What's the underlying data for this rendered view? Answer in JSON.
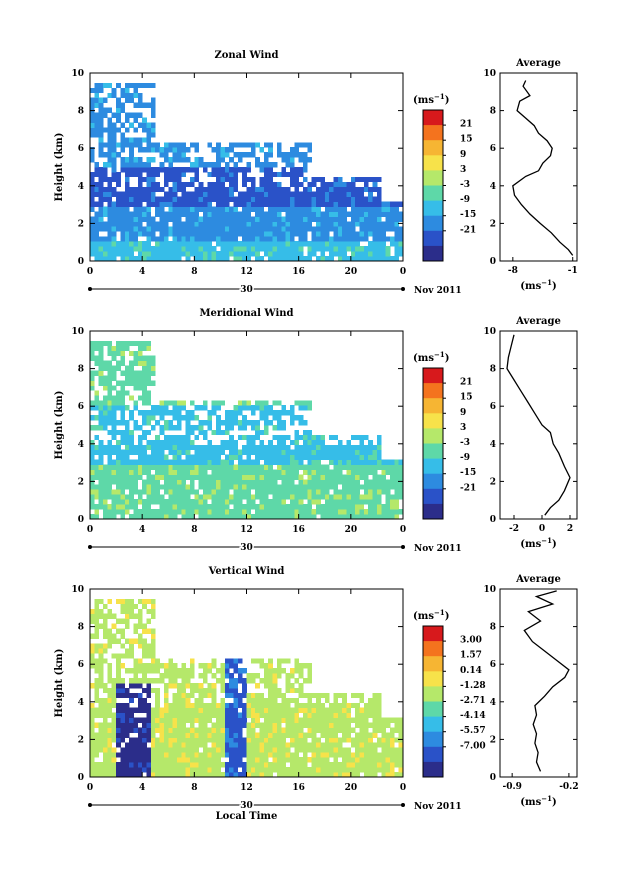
{
  "chart_data": [
    {
      "type": "heatmap",
      "title": "Zonal Wind",
      "ylabel": "Height (km)",
      "ylim": [
        0,
        10
      ],
      "xlim": [
        0,
        24
      ],
      "x_ticks": [
        "0",
        "4",
        "8",
        "12",
        "16",
        "20",
        "0"
      ],
      "y_ticks": [
        "0",
        "2",
        "4",
        "6",
        "8",
        "10"
      ],
      "date_tick": "30",
      "date_label": "Nov 2011",
      "colorbar": {
        "unit": "(ms",
        "unit_exp": "−1",
        "unit_close": ")",
        "labels": [
          "21",
          "15",
          "9",
          "3",
          "-3",
          "-9",
          "-15",
          "-21"
        ],
        "colors": [
          "#d7191c",
          "#f4731e",
          "#f6b533",
          "#f7e24a",
          "#b5e86a",
          "#5ed8a8",
          "#36bde8",
          "#2d8be0",
          "#2a52c8",
          "#2b2d8a"
        ]
      },
      "average": {
        "title": "Average",
        "x_ticks": [
          "-8",
          "-1"
        ],
        "xlabel": "(ms",
        "xlabel_exp": "−1",
        "xlabel_close": ")",
        "xlim": [
          -9.5,
          -0.5
        ],
        "profile": [
          [
            -1.0,
            0.3
          ],
          [
            -1.5,
            0.6
          ],
          [
            -2.5,
            1.0
          ],
          [
            -3.5,
            1.5
          ],
          [
            -4.8,
            2.0
          ],
          [
            -6.0,
            2.5
          ],
          [
            -7.0,
            3.0
          ],
          [
            -7.8,
            3.5
          ],
          [
            -8.0,
            4.0
          ],
          [
            -6.5,
            4.5
          ],
          [
            -5.0,
            4.8
          ],
          [
            -4.5,
            5.2
          ],
          [
            -3.6,
            5.6
          ],
          [
            -3.4,
            6.0
          ],
          [
            -4.0,
            6.4
          ],
          [
            -5.0,
            6.8
          ],
          [
            -5.5,
            7.2
          ],
          [
            -6.5,
            7.6
          ],
          [
            -7.5,
            8.0
          ],
          [
            -7.2,
            8.5
          ],
          [
            -6.0,
            8.8
          ],
          [
            -6.8,
            9.3
          ],
          [
            -6.5,
            9.6
          ]
        ]
      }
    },
    {
      "type": "heatmap",
      "title": "Meridional Wind",
      "ylabel": "Height (km)",
      "ylim": [
        0,
        10
      ],
      "xlim": [
        0,
        24
      ],
      "x_ticks": [
        "0",
        "4",
        "8",
        "12",
        "16",
        "20",
        "0"
      ],
      "y_ticks": [
        "0",
        "2",
        "4",
        "6",
        "8",
        "10"
      ],
      "date_tick": "30",
      "date_label": "Nov 2011",
      "colorbar": {
        "unit": "(ms",
        "unit_exp": "−1",
        "unit_close": ")",
        "labels": [
          "21",
          "15",
          "9",
          "3",
          "-3",
          "-9",
          "-15",
          "-21"
        ],
        "colors": [
          "#d7191c",
          "#f4731e",
          "#f6b533",
          "#f7e24a",
          "#b5e86a",
          "#5ed8a8",
          "#36bde8",
          "#2d8be0",
          "#2a52c8",
          "#2b2d8a"
        ]
      },
      "average": {
        "title": "Average",
        "x_ticks": [
          "-2",
          "0",
          "2"
        ],
        "xlabel": "(ms",
        "xlabel_exp": "−1",
        "xlabel_close": ")",
        "xlim": [
          -3,
          2.5
        ],
        "profile": [
          [
            0.2,
            0.2
          ],
          [
            0.6,
            0.6
          ],
          [
            1.2,
            1.0
          ],
          [
            1.6,
            1.5
          ],
          [
            2.0,
            2.2
          ],
          [
            1.6,
            2.8
          ],
          [
            1.2,
            3.5
          ],
          [
            0.8,
            4.0
          ],
          [
            0.6,
            4.6
          ],
          [
            0.0,
            5.0
          ],
          [
            -0.5,
            5.6
          ],
          [
            -1.0,
            6.2
          ],
          [
            -1.5,
            6.8
          ],
          [
            -2.0,
            7.4
          ],
          [
            -2.5,
            8.0
          ],
          [
            -2.4,
            8.6
          ],
          [
            -2.2,
            9.2
          ],
          [
            -2.0,
            9.8
          ]
        ]
      }
    },
    {
      "type": "heatmap",
      "title": "Vertical Wind",
      "ylabel": "Height (km)",
      "xlabel": "Local Time",
      "ylim": [
        0,
        10
      ],
      "xlim": [
        0,
        24
      ],
      "x_ticks": [
        "0",
        "4",
        "8",
        "12",
        "16",
        "20",
        "0"
      ],
      "y_ticks": [
        "0",
        "2",
        "4",
        "6",
        "8",
        "10"
      ],
      "date_tick": "30",
      "date_label": "Nov 2011",
      "colorbar": {
        "unit": "(ms",
        "unit_exp": "−1",
        "unit_close": ")",
        "labels": [
          "3.00",
          "1.57",
          "0.14",
          "-1.28",
          "-2.71",
          "-4.14",
          "-5.57",
          "-7.00"
        ],
        "colors": [
          "#d7191c",
          "#f4731e",
          "#f6b533",
          "#f7e24a",
          "#b5e86a",
          "#5ed8a8",
          "#36bde8",
          "#2d8be0",
          "#2a52c8",
          "#2b2d8a"
        ]
      },
      "average": {
        "title": "Average",
        "x_ticks": [
          "-0.9",
          "-0.2"
        ],
        "xlabel": "(ms",
        "xlabel_exp": "−1",
        "xlabel_close": ")",
        "xlim": [
          -1.05,
          -0.1
        ],
        "profile": [
          [
            -0.55,
            0.3
          ],
          [
            -0.6,
            0.8
          ],
          [
            -0.58,
            1.3
          ],
          [
            -0.62,
            1.8
          ],
          [
            -0.6,
            2.3
          ],
          [
            -0.64,
            2.8
          ],
          [
            -0.6,
            3.3
          ],
          [
            -0.62,
            3.8
          ],
          [
            -0.5,
            4.3
          ],
          [
            -0.4,
            4.8
          ],
          [
            -0.25,
            5.3
          ],
          [
            -0.2,
            5.7
          ],
          [
            -0.35,
            6.2
          ],
          [
            -0.5,
            6.7
          ],
          [
            -0.65,
            7.2
          ],
          [
            -0.75,
            7.8
          ],
          [
            -0.55,
            8.3
          ],
          [
            -0.7,
            8.8
          ],
          [
            -0.4,
            9.2
          ],
          [
            -0.6,
            9.6
          ],
          [
            -0.35,
            9.9
          ]
        ]
      }
    }
  ]
}
